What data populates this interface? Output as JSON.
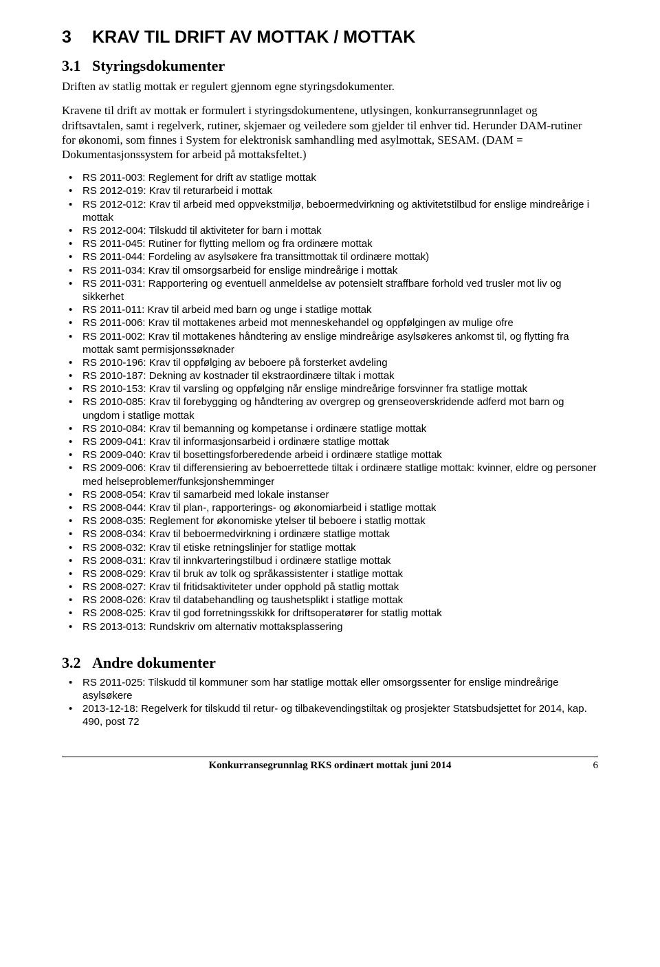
{
  "section3": {
    "num": "3",
    "title": "KRAV TIL DRIFT AV MOTTAK / MOTTAK",
    "sub31": {
      "num": "3.1",
      "title": "Styringsdokumenter",
      "para1": "Driften av statlig mottak er regulert gjennom egne styringsdokumenter.",
      "para2": "Kravene til drift av mottak er formulert i styringsdokumentene, utlysingen, konkurransegrunnlaget og driftsavtalen, samt i regelverk, rutiner, skjemaer og veiledere som gjelder til enhver tid. Herunder DAM-rutiner for økonomi, som finnes i System for elektronisk samhandling med asylmottak, SESAM. (DAM = Dokumentasjonssystem for arbeid på mottaksfeltet.)",
      "bullets": [
        "RS 2011-003: Reglement for drift av statlige mottak",
        "RS 2012-019: Krav til returarbeid i mottak",
        "RS 2012-012: Krav til arbeid med oppvekstmiljø, beboermedvirkning og aktivitetstilbud for enslige mindreårige i mottak",
        "RS 2012-004: Tilskudd til aktiviteter for barn i mottak",
        "RS 2011-045: Rutiner for flytting mellom og fra ordinære mottak",
        "RS 2011-044: Fordeling av asylsøkere fra transittmottak til ordinære mottak)",
        "RS 2011-034: Krav til omsorgsarbeid for enslige mindreårige i mottak",
        "RS 2011-031: Rapportering og eventuell anmeldelse av potensielt straffbare forhold ved trusler mot liv og sikkerhet",
        "RS 2011-011: Krav til arbeid med barn og unge i statlige mottak",
        "RS 2011-006: Krav til mottakenes arbeid mot menneskehandel og oppfølgingen av mulige ofre",
        "RS 2011-002: Krav til mottakenes håndtering av enslige mindreårige asylsøkeres ankomst til, og flytting fra mottak samt permisjonssøknader",
        "RS 2010-196: Krav til oppfølging av beboere på forsterket avdeling",
        "RS 2010-187: Dekning av kostnader til ekstraordinære tiltak i mottak",
        "RS 2010-153: Krav til varsling og oppfølging når enslige mindreårige forsvinner fra statlige mottak",
        "RS 2010-085: Krav til forebygging og håndtering av overgrep og grenseoverskridende adferd mot barn og ungdom i statlige mottak",
        "RS 2010-084: Krav til bemanning og kompetanse i ordinære statlige mottak",
        "RS 2009-041: Krav til informasjonsarbeid i ordinære statlige mottak",
        "RS 2009-040: Krav til bosettingsforberedende arbeid i ordinære statlige mottak",
        "RS 2009-006: Krav til differensiering av beboerrettede tiltak i ordinære statlige mottak: kvinner, eldre og personer med helseproblemer/funksjonshemminger",
        "RS 2008-054: Krav til samarbeid med lokale instanser",
        "RS 2008-044: Krav til plan-, rapporterings- og økonomiarbeid i statlige mottak",
        "RS 2008-035: Reglement for økonomiske ytelser til beboere i statlig mottak",
        "RS 2008-034: Krav til beboermedvirkning i ordinære statlige mottak",
        "RS 2008-032: Krav til etiske retningslinjer for statlige mottak",
        "RS 2008-031: Krav til innkvarteringstilbud i ordinære statlige mottak",
        "RS 2008-029: Krav til bruk av tolk og språkassistenter i statlige mottak",
        "RS 2008-027: Krav til fritidsaktiviteter under opphold på statlig mottak",
        "RS 2008-026: Krav til databehandling og taushetsplikt i statlige mottak",
        "RS 2008-025: Krav til god forretningsskikk for driftsoperatører for statlig mottak",
        "RS 2013-013: Rundskriv om alternativ mottaksplassering"
      ]
    },
    "sub32": {
      "num": "3.2",
      "title": "Andre dokumenter",
      "bullets": [
        "RS 2011-025:  Tilskudd til kommuner som har statlige mottak eller omsorgssenter for enslige mindreårige asylsøkere",
        "2013-12-18: Regelverk for tilskudd til retur- og tilbakevendingstiltak og prosjekter Statsbudsjettet for 2014, kap. 490, post 72"
      ]
    }
  },
  "footer": {
    "center": "Konkurransegrunnlag RKS ordinært mottak juni 2014",
    "pagenum": "6"
  }
}
